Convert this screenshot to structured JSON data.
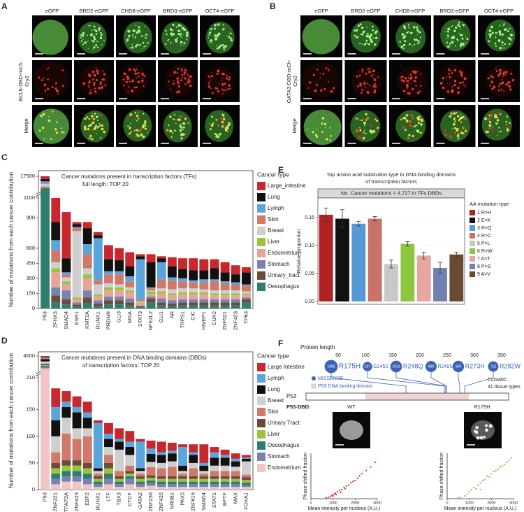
{
  "panels": [
    "A",
    "B",
    "C",
    "D",
    "E",
    "F"
  ],
  "microscopy_a": {
    "columns": [
      "eGFP",
      "BRD2-eGFP",
      "CHD8-eGFP",
      "BRD3-eGFP",
      "OCT4-eGFP"
    ],
    "channel_label": [
      "BCL6-DBD-mCh-",
      "Cry2"
    ],
    "merge_label": "Merge"
  },
  "microscopy_b": {
    "columns": [
      "eGFP",
      "BRD2-eGFP",
      "CHD8-eGFP",
      "BRD3-eGFP",
      "OCT4-eGFP"
    ],
    "channel_label": [
      "GATA3-DBD-mCh-",
      "Cry2"
    ],
    "merge_label": "Merge"
  },
  "chart_data": [
    {
      "type": "stacked_bar",
      "title": "Cancer mutations present in transcription factors (TFs)",
      "subtitle": "full length: TOP 20",
      "ylabel": "Number of mutations from each cancer contribution",
      "legend_title": "Cancer type",
      "categories": [
        "P53",
        "ZFHX3",
        "SMAD4",
        "ESR1",
        "KMT2A",
        "RUNX1",
        "PRDM9",
        "GLI3",
        "MGA",
        "STAT3",
        "NFE2L2",
        "GLI1",
        "AR",
        "TRPS1",
        "CIC",
        "HIVEP1",
        "CUX2",
        "ZNF521",
        "ZNF423",
        "TP63"
      ],
      "series": [
        {
          "name": "Large_intestine",
          "color": "#c8282d",
          "values": [
            3500,
            240,
            460,
            20,
            60,
            30,
            140,
            120,
            140,
            20,
            80,
            20,
            90,
            110,
            120,
            110,
            90,
            100,
            90,
            50
          ]
        },
        {
          "name": "Lung",
          "color": "#111111",
          "values": [
            2800,
            180,
            140,
            30,
            160,
            30,
            120,
            110,
            100,
            30,
            250,
            40,
            110,
            90,
            100,
            90,
            110,
            90,
            80,
            120
          ]
        },
        {
          "name": "Lymph",
          "color": "#5aa6dc",
          "values": [
            2500,
            100,
            20,
            10,
            100,
            420,
            30,
            30,
            50,
            400,
            10,
            170,
            30,
            30,
            20,
            30,
            20,
            20,
            20,
            10
          ]
        },
        {
          "name": "Skin",
          "color": "#d0786a",
          "values": [
            800,
            120,
            30,
            30,
            140,
            40,
            90,
            100,
            60,
            20,
            20,
            90,
            90,
            70,
            60,
            70,
            90,
            70,
            60,
            60
          ]
        },
        {
          "name": "Breast",
          "color": "#cfcfcf",
          "values": [
            2200,
            60,
            40,
            660,
            60,
            100,
            40,
            30,
            30,
            10,
            10,
            30,
            40,
            40,
            40,
            30,
            30,
            30,
            30,
            20
          ]
        },
        {
          "name": "Liver",
          "color": "#9bc43c",
          "values": [
            800,
            40,
            30,
            20,
            40,
            20,
            30,
            30,
            20,
            10,
            30,
            20,
            20,
            20,
            20,
            20,
            20,
            20,
            20,
            10
          ]
        },
        {
          "name": "Endometrium",
          "color": "#e8a49c",
          "values": [
            900,
            150,
            60,
            30,
            120,
            40,
            60,
            60,
            60,
            20,
            20,
            50,
            50,
            50,
            50,
            50,
            40,
            40,
            40,
            30
          ]
        },
        {
          "name": "Stomach",
          "color": "#7a83b0",
          "values": [
            1300,
            80,
            90,
            20,
            70,
            30,
            40,
            40,
            40,
            10,
            20,
            40,
            30,
            30,
            30,
            30,
            30,
            30,
            30,
            20
          ]
        },
        {
          "name": "Urinary_tract",
          "color": "#6b4c3b",
          "values": [
            1200,
            70,
            50,
            20,
            60,
            30,
            40,
            40,
            30,
            10,
            40,
            30,
            30,
            30,
            30,
            30,
            30,
            30,
            30,
            30
          ]
        },
        {
          "name": "Oesophagus",
          "color": "#2e7d6e",
          "values": [
            1500,
            60,
            40,
            20,
            50,
            20,
            40,
            40,
            30,
            10,
            60,
            30,
            20,
            30,
            30,
            30,
            30,
            30,
            30,
            60
          ]
        }
      ],
      "ylim": [
        0,
        17500
      ],
      "yticks": [
        0,
        150,
        300,
        450,
        600,
        900,
        1100,
        17500
      ]
    },
    {
      "type": "stacked_bar",
      "title": "Cancer mutations present in DNA binding domains (DBDs)",
      "subtitle": "of transcription factors: TOP 20",
      "ylabel": "Number of mutations from each cancer contribution",
      "legend_title": "Cancer type",
      "categories": [
        "P53",
        "ZNF321",
        "TFAP2A",
        "ZNF423",
        "EBF2",
        "RUNX1",
        "LTF",
        "TBX3",
        "CTCF",
        "GATA2",
        "ZNF236",
        "ZNF425",
        "NR0B1",
        "PAX5",
        "ZNF615",
        "SMAD4",
        "STAT1",
        "BPTF",
        "MAX",
        "FOXA1"
      ],
      "series": [
        {
          "name": "Large Intestine",
          "color": "#c8282d",
          "values": [
            650,
            35,
            20,
            20,
            20,
            5,
            20,
            20,
            20,
            5,
            15,
            20,
            15,
            5,
            15,
            35,
            10,
            10,
            10,
            5
          ]
        },
        {
          "name": "Lymph",
          "color": "#5aa6dc",
          "values": [
            400,
            25,
            10,
            10,
            10,
            85,
            10,
            5,
            10,
            50,
            10,
            5,
            5,
            35,
            5,
            5,
            10,
            5,
            5,
            2
          ]
        },
        {
          "name": "Lung",
          "color": "#111111",
          "values": [
            800,
            30,
            20,
            30,
            20,
            5,
            15,
            15,
            15,
            5,
            15,
            15,
            15,
            10,
            15,
            10,
            15,
            15,
            10,
            5
          ]
        },
        {
          "name": "Breast",
          "color": "#cfcfcf",
          "values": [
            700,
            30,
            30,
            20,
            15,
            5,
            15,
            40,
            20,
            5,
            10,
            10,
            10,
            5,
            10,
            5,
            10,
            10,
            8,
            25
          ]
        },
        {
          "name": "Skin",
          "color": "#d0786a",
          "values": [
            200,
            20,
            50,
            40,
            50,
            5,
            15,
            10,
            10,
            5,
            15,
            15,
            18,
            5,
            15,
            5,
            10,
            10,
            10,
            5
          ]
        },
        {
          "name": "Urinary Tract",
          "color": "#6b4c3b",
          "values": [
            350,
            10,
            10,
            10,
            10,
            5,
            10,
            5,
            5,
            5,
            5,
            5,
            5,
            5,
            5,
            5,
            5,
            5,
            5,
            5
          ]
        },
        {
          "name": "Liver",
          "color": "#9bc43c",
          "values": [
            250,
            10,
            10,
            10,
            10,
            5,
            10,
            5,
            5,
            5,
            5,
            5,
            5,
            5,
            5,
            5,
            5,
            5,
            5,
            5
          ]
        },
        {
          "name": "Oesophagus",
          "color": "#2e7d6e",
          "values": [
            450,
            10,
            10,
            10,
            10,
            5,
            10,
            5,
            5,
            5,
            5,
            5,
            5,
            5,
            5,
            5,
            5,
            5,
            5,
            5
          ]
        },
        {
          "name": "Stomach",
          "color": "#7a83b0",
          "values": [
            400,
            10,
            10,
            10,
            10,
            5,
            10,
            5,
            10,
            5,
            5,
            5,
            5,
            5,
            5,
            5,
            5,
            5,
            5,
            3
          ]
        },
        {
          "name": "Endometrium",
          "color": "#f2c4c4",
          "values": [
            300,
            10,
            15,
            15,
            10,
            5,
            10,
            5,
            10,
            5,
            7,
            5,
            5,
            5,
            5,
            5,
            5,
            5,
            5,
            5
          ]
        }
      ],
      "ylim": [
        0,
        4500
      ],
      "yticks": [
        0,
        50,
        100,
        150,
        210,
        4500
      ]
    },
    {
      "type": "bar",
      "title": "Top amino acid substution type in DNA binding domains",
      "subtitle": "of transcription factors",
      "annotation": "No. Cancer mutations = 4,727 in TFs DBDs",
      "ylabel": "Relative proportion",
      "legend_title": "AA mutation type",
      "categories": [
        "1 R>H",
        "2 E>K",
        "3 R>Q",
        "4 R>C",
        "5 P>L",
        "6 R>W",
        "7 A>T",
        "8 P>S",
        "9 A>V"
      ],
      "values": [
        0.155,
        0.148,
        0.139,
        0.148,
        0.067,
        0.103,
        0.082,
        0.06,
        0.084
      ],
      "errors": [
        0.012,
        0.016,
        0.004,
        0.004,
        0.007,
        0.004,
        0.006,
        0.01,
        0.004
      ],
      "colors": [
        "#b22222",
        "#111111",
        "#5599d6",
        "#cc7166",
        "#c8c8c8",
        "#8dc63f",
        "#e8a6a3",
        "#7180b3",
        "#6b4a32"
      ],
      "ylim": [
        -0.005,
        0.185
      ],
      "yticks": [
        {
          "value": 0,
          "label": "0.00"
        },
        {
          "value": 0.05,
          "label": "0.05"
        },
        {
          "value": 0.1,
          "label": "0.10"
        },
        {
          "value": 0.15,
          "label": "0.15"
        }
      ]
    },
    {
      "type": "scatter",
      "xlabel": "Mean intensity per nucleus (A.U.)",
      "ylabel": "Phase-shifted fraction",
      "color": "#c62a1a",
      "x": [
        700,
        800,
        900,
        950,
        1000,
        1050,
        1100,
        1150,
        1200,
        1300,
        1350,
        1400,
        1500,
        1550,
        1600,
        1700,
        1800,
        1900,
        2000,
        2100,
        2200,
        2300,
        2500,
        2700,
        2900
      ],
      "values": [
        0.02,
        0.03,
        0.05,
        0.08,
        0.06,
        0.1,
        0.12,
        0.09,
        0.15,
        0.18,
        0.14,
        0.2,
        0.25,
        0.22,
        0.28,
        0.3,
        0.35,
        0.38,
        0.4,
        0.45,
        0.5,
        0.55,
        0.62,
        0.7,
        0.8
      ],
      "xlim": [
        0,
        3000
      ],
      "xticks": [
        0,
        1000,
        2000,
        3000
      ],
      "ylim": [
        0,
        1
      ]
    },
    {
      "type": "scatter",
      "xlabel": "Mean intensity per nucleus (A.U.)",
      "ylabel": "Phase-shifted fraction",
      "color": "#7cc242",
      "x": [
        500,
        600,
        800,
        900,
        1000,
        1100,
        1200,
        1300,
        1400,
        1500,
        1600,
        1700,
        1800,
        1900,
        2000,
        2100,
        2200,
        2300,
        2400,
        2500,
        2600,
        2700,
        2800,
        2900,
        1500
      ],
      "values": [
        0.02,
        0.03,
        0.06,
        0.1,
        0.15,
        0.2,
        0.25,
        0.22,
        0.3,
        0.35,
        0.4,
        0.42,
        0.5,
        0.48,
        0.55,
        0.6,
        0.62,
        0.65,
        0.7,
        0.72,
        0.75,
        0.8,
        0.85,
        0.9,
        0.2
      ],
      "xlim": [
        0,
        3000
      ],
      "xticks": [
        0,
        1000,
        2000,
        3000
      ],
      "ylim": [
        0,
        1
      ]
    }
  ],
  "p53_diagram": {
    "axis_title": "Protein length",
    "ticks": [
      50,
      100,
      150,
      200,
      250,
      300,
      350
    ],
    "mutations": [
      {
        "count": 1485,
        "label": "R175H"
      },
      {
        "count": 507,
        "label": "G245S"
      },
      {
        "count": 1033,
        "label": "R248Q"
      },
      {
        "count": 889,
        "label": "R249S"
      },
      {
        "count": 969,
        "label": "R273H"
      },
      {
        "count": 712,
        "label": "R282W"
      }
    ],
    "legend": [
      "MISSENSE",
      "P53 DNA binding domain"
    ],
    "source": [
      "COSMIC",
      "41 tissue types"
    ],
    "protein": "P53",
    "dbd_label": "P53-DBD:",
    "conditions": [
      "WT",
      "R175H"
    ]
  }
}
